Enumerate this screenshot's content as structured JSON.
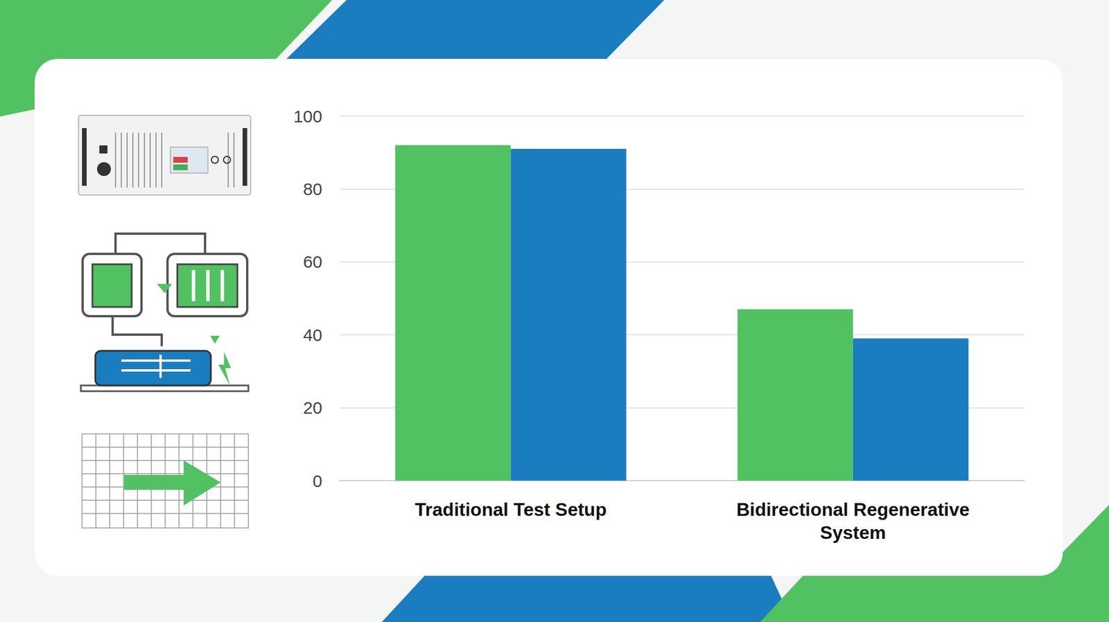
{
  "chart_data": {
    "type": "bar",
    "categories": [
      "Traditional Test Setup",
      "Bidirectional Regenerative System"
    ],
    "series": [
      {
        "color": "#52c162",
        "values": [
          92,
          47
        ]
      },
      {
        "color": "#1a7dc0",
        "values": [
          91,
          39
        ]
      }
    ],
    "ylim": [
      0,
      100
    ],
    "yticks": [
      0,
      20,
      40,
      60,
      80,
      100
    ],
    "grid": true
  }
}
